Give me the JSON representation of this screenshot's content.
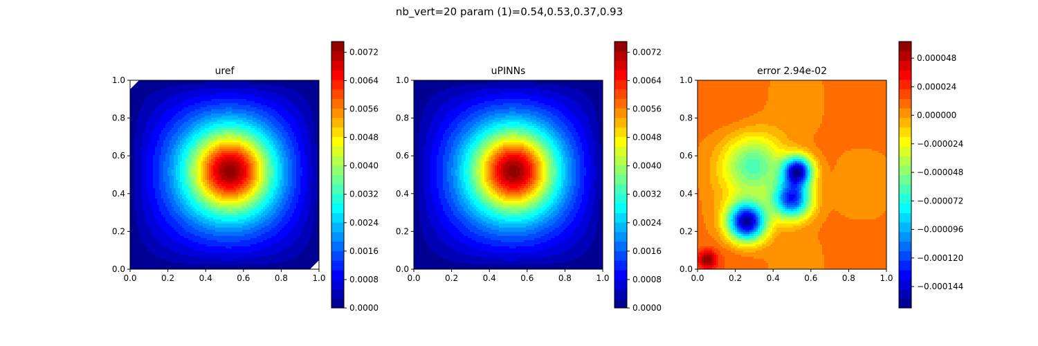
{
  "figure": {
    "suptitle": "nb_vert=20 param (1)=0.54,0.53,0.37,0.93"
  },
  "chart_data": [
    {
      "type": "heatmap",
      "title": "uref",
      "colormap": "jet",
      "xlim": [
        0.0,
        1.0
      ],
      "ylim": [
        0.0,
        1.0
      ],
      "x_ticks": [
        "0.0",
        "0.2",
        "0.4",
        "0.6",
        "0.8",
        "1.0"
      ],
      "y_ticks": [
        "0.0",
        "0.2",
        "0.4",
        "0.6",
        "0.8",
        "1.0"
      ],
      "field": {
        "kind": "bump",
        "peak_value": 0.0074,
        "peak_x": 0.53,
        "peak_y": 0.52,
        "masked_corners": true
      },
      "colorbar": {
        "range": [
          0.0,
          0.0075
        ],
        "ticks": [
          0.0,
          0.0008,
          0.0016,
          0.0024,
          0.0032,
          0.004,
          0.0048,
          0.0056,
          0.0064,
          0.0072
        ],
        "tick_labels": [
          "0.0000",
          "0.0008",
          "0.0016",
          "0.0024",
          "0.0032",
          "0.0040",
          "0.0048",
          "0.0056",
          "0.0064",
          "0.0072"
        ]
      }
    },
    {
      "type": "heatmap",
      "title": "uPINNs",
      "colormap": "jet",
      "xlim": [
        0.0,
        1.0
      ],
      "ylim": [
        0.0,
        1.0
      ],
      "x_ticks": [
        "0.0",
        "0.2",
        "0.4",
        "0.6",
        "0.8",
        "1.0"
      ],
      "y_ticks": [
        "0.0",
        "0.2",
        "0.4",
        "0.6",
        "0.8",
        "1.0"
      ],
      "field": {
        "kind": "bump",
        "peak_value": 0.0074,
        "peak_x": 0.53,
        "peak_y": 0.52,
        "masked_corners": false
      },
      "colorbar": {
        "range": [
          0.0,
          0.0075
        ],
        "ticks": [
          0.0,
          0.0008,
          0.0016,
          0.0024,
          0.0032,
          0.004,
          0.0048,
          0.0056,
          0.0064,
          0.0072
        ],
        "tick_labels": [
          "0.0000",
          "0.0008",
          "0.0016",
          "0.0024",
          "0.0032",
          "0.0040",
          "0.0048",
          "0.0056",
          "0.0064",
          "0.0072"
        ]
      }
    },
    {
      "type": "heatmap",
      "title": "error 2.94e-02",
      "colormap": "jet",
      "xlim": [
        0.0,
        1.0
      ],
      "ylim": [
        0.0,
        1.0
      ],
      "x_ticks": [
        "0.0",
        "0.2",
        "0.4",
        "0.6",
        "0.8",
        "1.0"
      ],
      "y_ticks": [
        "0.0",
        "0.2",
        "0.4",
        "0.6",
        "0.8",
        "1.0"
      ],
      "field": {
        "kind": "error",
        "background_value": 7.5e-06,
        "features": [
          {
            "x": 0.26,
            "y": 0.25,
            "value": -0.000155
          },
          {
            "x": 0.53,
            "y": 0.52,
            "value": -0.000145
          },
          {
            "x": 0.5,
            "y": 0.37,
            "value": -0.00013
          },
          {
            "x": 0.05,
            "y": 0.05,
            "value": 6e-05
          },
          {
            "x": 0.3,
            "y": 0.55,
            "value": -6e-05
          }
        ]
      },
      "colorbar": {
        "range": [
          -0.000162,
          6.2e-05
        ],
        "ticks": [
          -0.000144,
          -0.00012,
          -9.6e-05,
          -7.2e-05,
          -4.8e-05,
          -2.4e-05,
          0.0,
          2.4e-05,
          4.8e-05
        ],
        "tick_labels": [
          "−0.000144",
          "−0.000120",
          "−0.000096",
          "−0.000072",
          "−0.000048",
          "−0.000024",
          "0.000000",
          "0.000024",
          "0.000048"
        ]
      }
    }
  ]
}
